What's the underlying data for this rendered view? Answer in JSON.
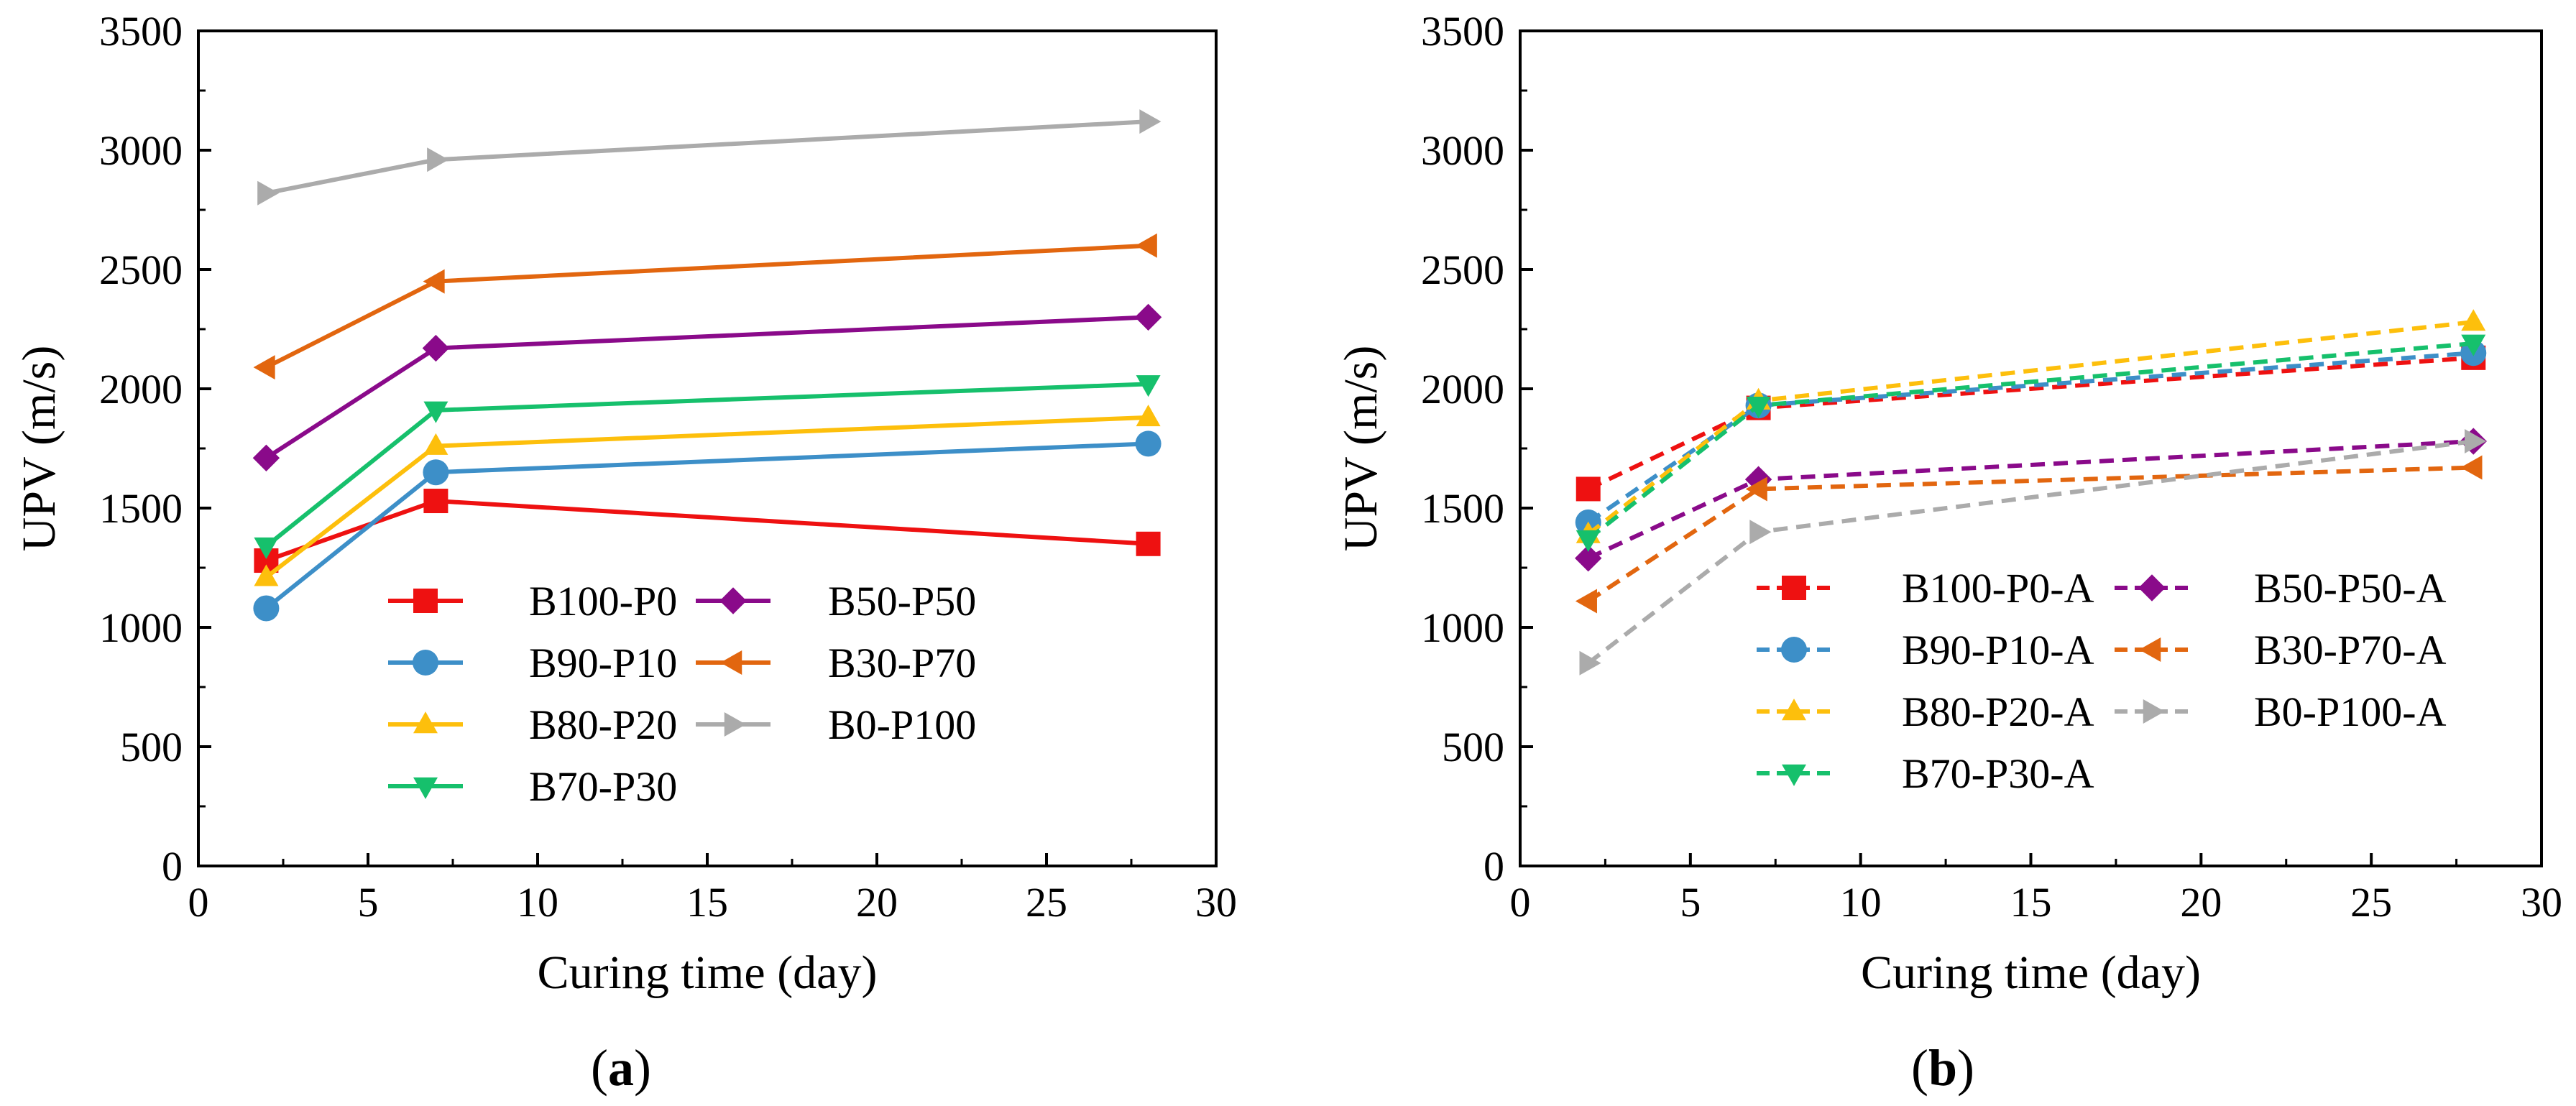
{
  "chart_data": [
    {
      "type": "line",
      "panel_label": "a",
      "title": "",
      "xlabel": "Curing time (day)",
      "ylabel": "UPV (m/s)",
      "xlim": [
        0,
        30
      ],
      "ylim": [
        0,
        3500
      ],
      "xticks": [
        0,
        5,
        10,
        15,
        20,
        25,
        30
      ],
      "yticks": [
        0,
        500,
        1000,
        1500,
        2000,
        2500,
        3000,
        3500
      ],
      "grid": false,
      "legend_position": "bottom-right",
      "x": [
        2,
        7,
        28
      ],
      "series": [
        {
          "name": "B100-P0",
          "values": [
            1280,
            1530,
            1350
          ],
          "color": "#ee1111",
          "marker": "square",
          "dashed": false
        },
        {
          "name": "B50-P50",
          "values": [
            1710,
            2170,
            2300
          ],
          "color": "#8a0a8a",
          "marker": "diamond",
          "dashed": false
        },
        {
          "name": "B90-P10",
          "values": [
            1080,
            1650,
            1770
          ],
          "color": "#3d8fc8",
          "marker": "circle",
          "dashed": false
        },
        {
          "name": "B30-P70",
          "values": [
            2090,
            2450,
            2600
          ],
          "color": "#e2660f",
          "marker": "triangle-left",
          "dashed": false
        },
        {
          "name": "B80-P20",
          "values": [
            1210,
            1760,
            1880
          ],
          "color": "#fdbf0c",
          "marker": "triangle-up",
          "dashed": false
        },
        {
          "name": "B0-P100",
          "values": [
            2820,
            2960,
            3120
          ],
          "color": "#ababab",
          "marker": "triangle-right",
          "dashed": false
        },
        {
          "name": "B70-P30",
          "values": [
            1340,
            1910,
            2020
          ],
          "color": "#16c06c",
          "marker": "triangle-down",
          "dashed": false
        }
      ]
    },
    {
      "type": "line",
      "panel_label": "b",
      "title": "",
      "xlabel": "Curing time (day)",
      "ylabel": "UPV (m/s)",
      "xlim": [
        0,
        30
      ],
      "ylim": [
        0,
        3500
      ],
      "xticks": [
        0,
        5,
        10,
        15,
        20,
        25,
        30
      ],
      "yticks": [
        0,
        500,
        1000,
        1500,
        2000,
        2500,
        3000,
        3500
      ],
      "grid": false,
      "legend_position": "bottom-right",
      "x": [
        2,
        7,
        28
      ],
      "series": [
        {
          "name": "B100-P0-A",
          "values": [
            1580,
            1920,
            2130
          ],
          "color": "#ee1111",
          "marker": "square",
          "dashed": true
        },
        {
          "name": "B50-P50-A",
          "values": [
            1290,
            1620,
            1780
          ],
          "color": "#8a0a8a",
          "marker": "diamond",
          "dashed": true
        },
        {
          "name": "B90-P10-A",
          "values": [
            1440,
            1930,
            2150
          ],
          "color": "#3d8fc8",
          "marker": "circle",
          "dashed": true
        },
        {
          "name": "B30-P70-A",
          "values": [
            1110,
            1580,
            1670
          ],
          "color": "#e2660f",
          "marker": "triangle-left",
          "dashed": true
        },
        {
          "name": "B80-P20-A",
          "values": [
            1390,
            1950,
            2280
          ],
          "color": "#fdbf0c",
          "marker": "triangle-up",
          "dashed": true
        },
        {
          "name": "B0-P100-A",
          "values": [
            850,
            1400,
            1780
          ],
          "color": "#ababab",
          "marker": "triangle-right",
          "dashed": true
        },
        {
          "name": "B70-P30-A",
          "values": [
            1370,
            1930,
            2190
          ],
          "color": "#16c06c",
          "marker": "triangle-down",
          "dashed": true
        }
      ]
    }
  ]
}
